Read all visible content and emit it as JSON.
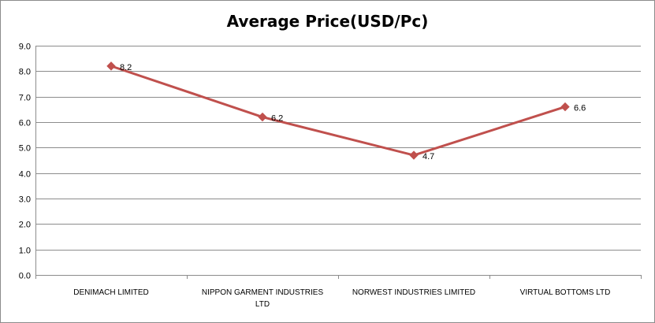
{
  "chart_data": {
    "type": "line",
    "title": "Average Price(USD/Pc)",
    "categories": [
      [
        "DENIMACH LIMITED"
      ],
      [
        "NIPPON GARMENT  INDUSTRIES",
        "LTD"
      ],
      [
        "NORWEST INDUSTRIES  LIMITED"
      ],
      [
        "VIRTUAL BOTTOMS LTD"
      ]
    ],
    "series": [
      {
        "values": [
          8.2,
          6.2,
          4.7,
          6.6
        ],
        "color": "#c0504d",
        "marker": "diamond"
      }
    ],
    "data_labels": [
      "8.2",
      "6.2",
      "4.7",
      "6.6"
    ],
    "ylim": [
      0,
      9
    ],
    "yticks": [
      0,
      1,
      2,
      3,
      4,
      5,
      6,
      7,
      8,
      9
    ],
    "ytick_labels": [
      "0.0",
      "1.0",
      "2.0",
      "3.0",
      "4.0",
      "5.0",
      "6.0",
      "7.0",
      "8.0",
      "9.0"
    ],
    "grid": true,
    "xlabel": "",
    "ylabel": ""
  }
}
